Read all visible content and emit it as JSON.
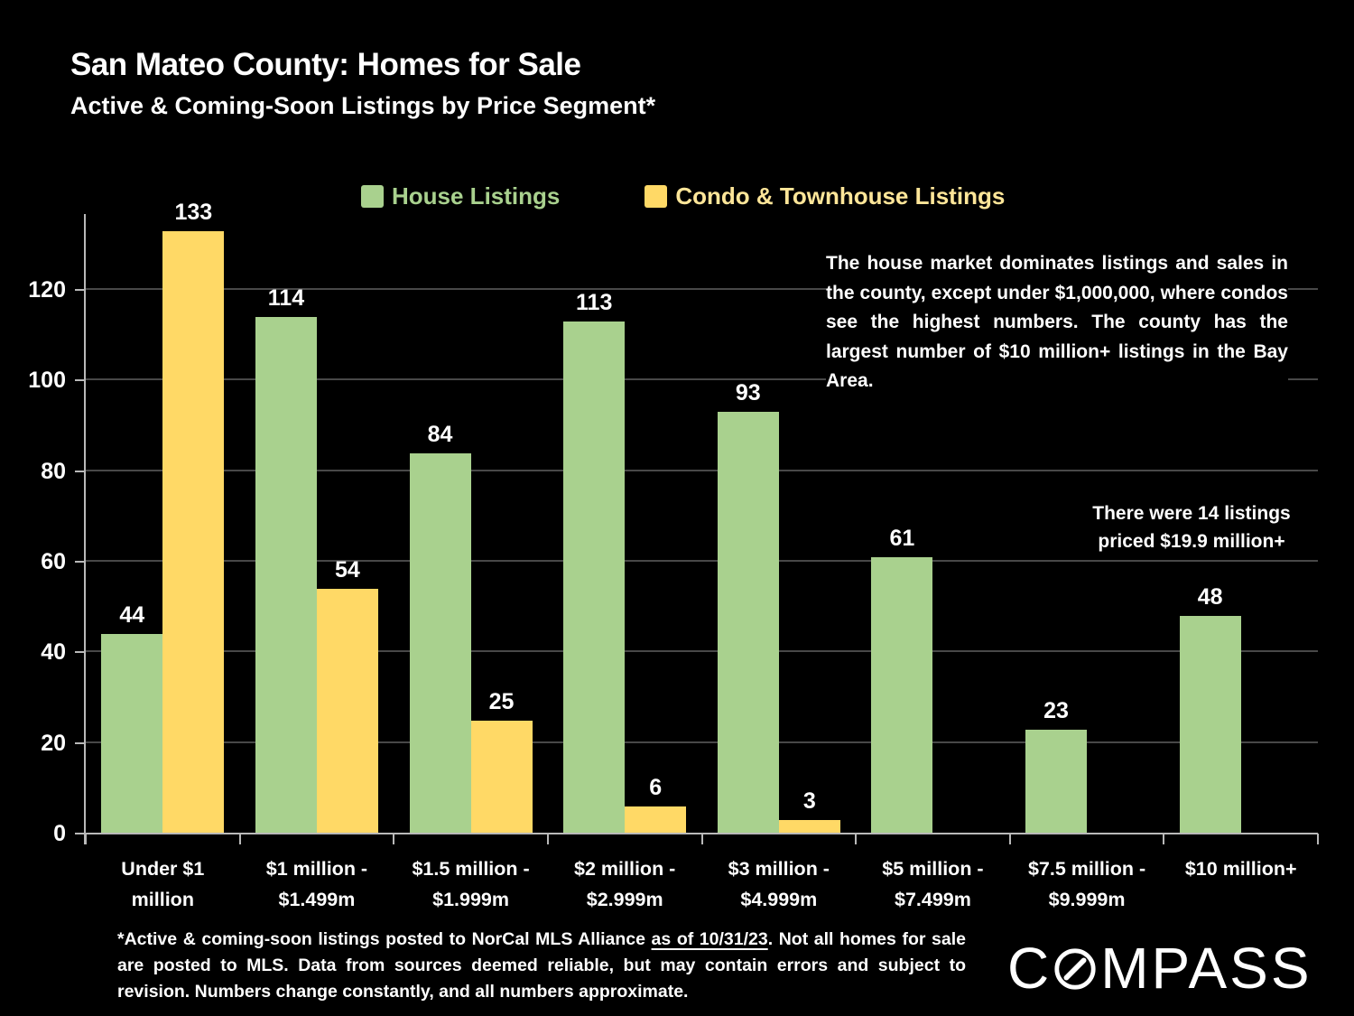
{
  "slide": {
    "title": "San Mateo County: Homes for Sale",
    "subtitle": "Active & Coming-Soon Listings by Price Segment*"
  },
  "annotations": {
    "market_note": "The house market dominates listings and sales in the county, except under $1,000,000, where condos see the highest numbers. The county has the largest number of $10 million+ listings in the Bay Area.",
    "luxury_note": "There were 14 listings\npriced $19.9 million+"
  },
  "footnote": {
    "prefix": "*Active & coming-soon listings posted to NorCal MLS Alliance ",
    "underlined": "as of 10/31/23",
    "suffix": ". Not all homes for sale are posted to MLS. Data from sources deemed reliable, but may contain errors and subject to revision. Numbers change constantly, and all numbers approximate."
  },
  "logo": {
    "prefix": "C",
    "suffix": "MPASS",
    "icon": "compass-circle-needle-icon"
  },
  "colors": {
    "background": "#000000",
    "house_bar": "#a9d18e",
    "condo_bar": "#ffd966",
    "house_legend_text": "#a9d18e",
    "condo_legend_text": "#ffe699",
    "gridline": "#484848",
    "axis": "#b9b9b9",
    "text": "#ffffff"
  },
  "chart_data": {
    "type": "bar",
    "title": "Active & Coming-Soon Listings by Price Segment",
    "xlabel": "",
    "ylabel": "",
    "categories": [
      "Under $1\nmillion",
      "$1 million -\n$1.499m",
      "$1.5 million -\n$1.999m",
      "$2 million -\n$2.999m",
      "$3 million -\n$4.999m",
      "$5 million -\n$7.499m",
      "$7.5 million -\n$9.999m",
      "$10 million+"
    ],
    "series": [
      {
        "name": "House Listings",
        "color": "#a9d18e",
        "values": [
          44,
          114,
          84,
          113,
          93,
          61,
          23,
          48
        ]
      },
      {
        "name": "Condo & Townhouse Listings",
        "color": "#ffd966",
        "values": [
          133,
          54,
          25,
          6,
          3,
          null,
          null,
          null
        ]
      }
    ],
    "yticks": [
      0,
      20,
      40,
      60,
      80,
      100,
      120
    ],
    "ylim": [
      0,
      136.75
    ],
    "grid": true,
    "legend_position": "top",
    "value_labels": true
  }
}
